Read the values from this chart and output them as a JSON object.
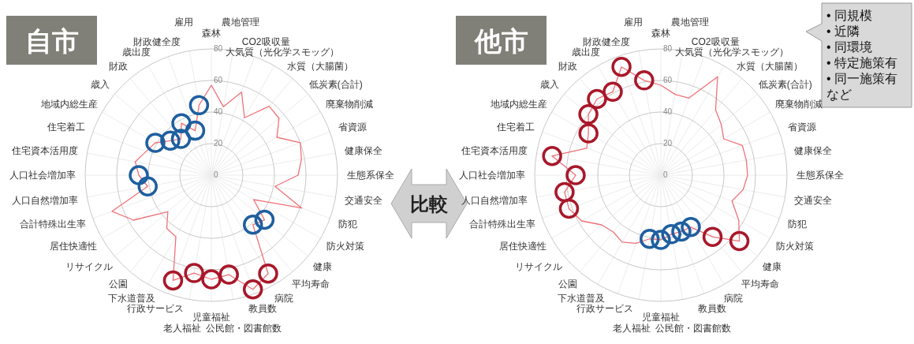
{
  "chart_data": [
    {
      "type": "radar",
      "title": "自市",
      "categories": [
        "森林",
        "農地管理",
        "CO2吸収量",
        "大気質（光化学スモッグ）",
        "水質（大腸菌）",
        "低炭素(合計)",
        "廃棄物削減",
        "省資源",
        "健康保全",
        "生態系保全",
        "交通安全",
        "防犯",
        "防火対策",
        "健康",
        "平均寿命",
        "病院",
        "教員数",
        "公民館・図書館数",
        "児童福祉",
        "老人福祉",
        "行政サービス",
        "下水道普及",
        "公園",
        "リサイクル",
        "居住快適性",
        "合計特殊出生率",
        "人口自然増加率",
        "人口社会増加率",
        "住宅資本活用度",
        "住宅着工",
        "地域内総生産",
        "歳入",
        "財政",
        "歳出度",
        "財政健全度",
        "雇用"
      ],
      "ylim": [
        0,
        80
      ],
      "yticks": [
        0,
        20,
        40,
        60,
        80
      ],
      "grid": true,
      "series": [
        {
          "color": "#f07178",
          "marker": "circle",
          "values": [
            57,
            44,
            56,
            42,
            57,
            56,
            48,
            60,
            58,
            55,
            41,
            61,
            31,
            44,
            41,
            72,
            77,
            64,
            66,
            63,
            71,
            45,
            44,
            36,
            57,
            67,
            41,
            46,
            49,
            44,
            41,
            34,
            30,
            38,
            30,
            45
          ],
          "colors": [
            null,
            null,
            null,
            null,
            null,
            null,
            null,
            null,
            null,
            null,
            null,
            null,
            null,
            "#1f5f9f",
            "#1f5f9f",
            "#a8182a",
            "#a8182a",
            "#a8182a",
            "#a8182a",
            "#a8182a",
            "#a8182a",
            null,
            null,
            null,
            null,
            null,
            "#1f5f9f",
            "#1f5f9f",
            null,
            null,
            "#1f5f9f",
            "#1f5f9f",
            "#1f5f9f",
            "#1f5f9f",
            "#1f5f9f",
            "#1f5f9f"
          ]
        }
      ],
      "annotations": [
        "比較"
      ]
    },
    {
      "type": "radar",
      "title": "他市",
      "categories": [
        "森林",
        "農地管理",
        "CO2吸収量",
        "大気質（光化学スモッグ）",
        "水質（大腸菌）",
        "低炭素(合計)",
        "廃棄物削減",
        "省資源",
        "健康保全",
        "生態系保全",
        "交通安全",
        "防犯",
        "防火対策",
        "健康",
        "平均寿命",
        "病院",
        "教員数",
        "公民館・図書館数",
        "児童福祉",
        "老人福祉",
        "行政サービス",
        "下水道普及",
        "公園",
        "リサイクル",
        "居住快適性",
        "合計特殊出生率",
        "人口自然増加率",
        "人口社会増加率",
        "住宅資本活用度",
        "住宅着工",
        "地域内総生産",
        "歳入",
        "財政",
        "歳出度",
        "財政健全度",
        "雇用"
      ],
      "ylim": [
        0,
        80
      ],
      "yticks": [
        0,
        20,
        40,
        60,
        80
      ],
      "grid": true,
      "series": [
        {
          "color": "#f07178",
          "marker": "circle",
          "values": [
            57,
            52,
            52,
            72,
            54,
            50,
            46,
            55,
            55,
            55,
            53,
            48,
            57,
            65,
            51,
            38,
            38,
            38,
            41,
            41,
            46,
            49,
            47,
            49,
            58,
            62,
            62,
            54,
            70,
            50,
            53,
            60,
            63,
            61,
            73,
            61
          ],
          "colors": [
            null,
            null,
            null,
            null,
            null,
            null,
            null,
            null,
            null,
            null,
            null,
            null,
            null,
            "#a8182a",
            "#a8182a",
            "#1f5f9f",
            "#1f5f9f",
            "#1f5f9f",
            "#1f5f9f",
            "#1f5f9f",
            null,
            null,
            null,
            null,
            null,
            "#a8182a",
            "#a8182a",
            "#a8182a",
            "#a8182a",
            null,
            "#a8182a",
            "#a8182a",
            "#a8182a",
            "#a8182a",
            "#a8182a",
            "#a8182a"
          ]
        }
      ],
      "annotations": [
        "• 同規模",
        "• 近隣",
        "• 同環境",
        "• 特定施策有",
        "• 同一施策有",
        "など"
      ]
    }
  ]
}
